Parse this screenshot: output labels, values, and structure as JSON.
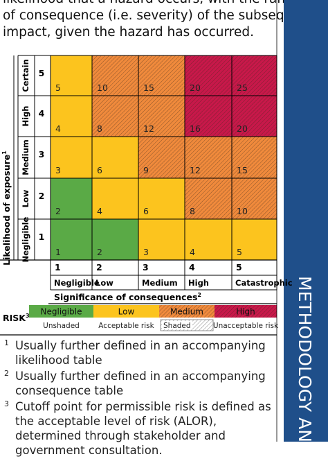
{
  "intro": [
    "likelihood that a hazard occurs, with the ranking",
    "of consequence (i.e. severity) of the subsequent",
    "impact, given the hazard has occurred."
  ],
  "side_banner": "METHODOLOGY AND R",
  "matrix": {
    "y_axis_title": "Likelihood of exposure",
    "y_axis_note": "1",
    "x_axis_title": "Significance of consequences",
    "x_axis_note": "2",
    "rows": [
      {
        "label": "Certain",
        "level": "5",
        "cells": [
          "5",
          "10",
          "15",
          "20",
          "25"
        ],
        "colors": [
          "#fcc41e",
          "#f08a3c",
          "#f08a3c",
          "#c8184a",
          "#c8184a"
        ]
      },
      {
        "label": "High",
        "level": "4",
        "cells": [
          "4",
          "8",
          "12",
          "16",
          "20"
        ],
        "colors": [
          "#fcc41e",
          "#f08a3c",
          "#f08a3c",
          "#c8184a",
          "#c8184a"
        ]
      },
      {
        "label": "Medium",
        "level": "3",
        "cells": [
          "3",
          "6",
          "9",
          "12",
          "15"
        ],
        "colors": [
          "#fcc41e",
          "#fcc41e",
          "#f08a3c",
          "#f08a3c",
          "#f08a3c"
        ]
      },
      {
        "label": "Low",
        "level": "2",
        "cells": [
          "2",
          "4",
          "6",
          "8",
          "10"
        ],
        "colors": [
          "#5aaa46",
          "#fcc41e",
          "#fcc41e",
          "#f08a3c",
          "#f08a3c"
        ]
      },
      {
        "label": "Negligible",
        "level": "1",
        "cells": [
          "1",
          "2",
          "3",
          "4",
          "5"
        ],
        "colors": [
          "#5aaa46",
          "#5aaa46",
          "#fcc41e",
          "#fcc41e",
          "#fcc41e"
        ]
      }
    ],
    "columns": [
      {
        "level": "1",
        "label": "Negligible"
      },
      {
        "level": "2",
        "label": "Low"
      },
      {
        "level": "3",
        "label": "Medium"
      },
      {
        "level": "4",
        "label": "High"
      },
      {
        "level": "5",
        "label": "Catastrophic"
      }
    ]
  },
  "legend": {
    "label": "RISK",
    "note": "3",
    "levels": [
      {
        "name": "Negligible",
        "color": "#5aaa46",
        "shaded": false
      },
      {
        "name": "Low",
        "color": "#fcc41e",
        "shaded": false
      },
      {
        "name": "Medium",
        "color": "#f08a3c",
        "shaded": true
      },
      {
        "name": "High",
        "color": "#c8184a",
        "shaded": true
      }
    ],
    "groups": [
      "Unshaded",
      "Acceptable risk",
      "Shaded",
      "Unacceptable risk"
    ]
  },
  "footnotes": [
    {
      "mark": "1",
      "text": "Usually further defined in an accompanying likelihood table"
    },
    {
      "mark": "2",
      "text": "Usually further defined in an accompanying consequence table"
    },
    {
      "mark": "3",
      "text": "Cutoff point for permissible risk is defined as the acceptable level of risk (ALOR), determined through stakeholder and government consultation."
    }
  ]
}
